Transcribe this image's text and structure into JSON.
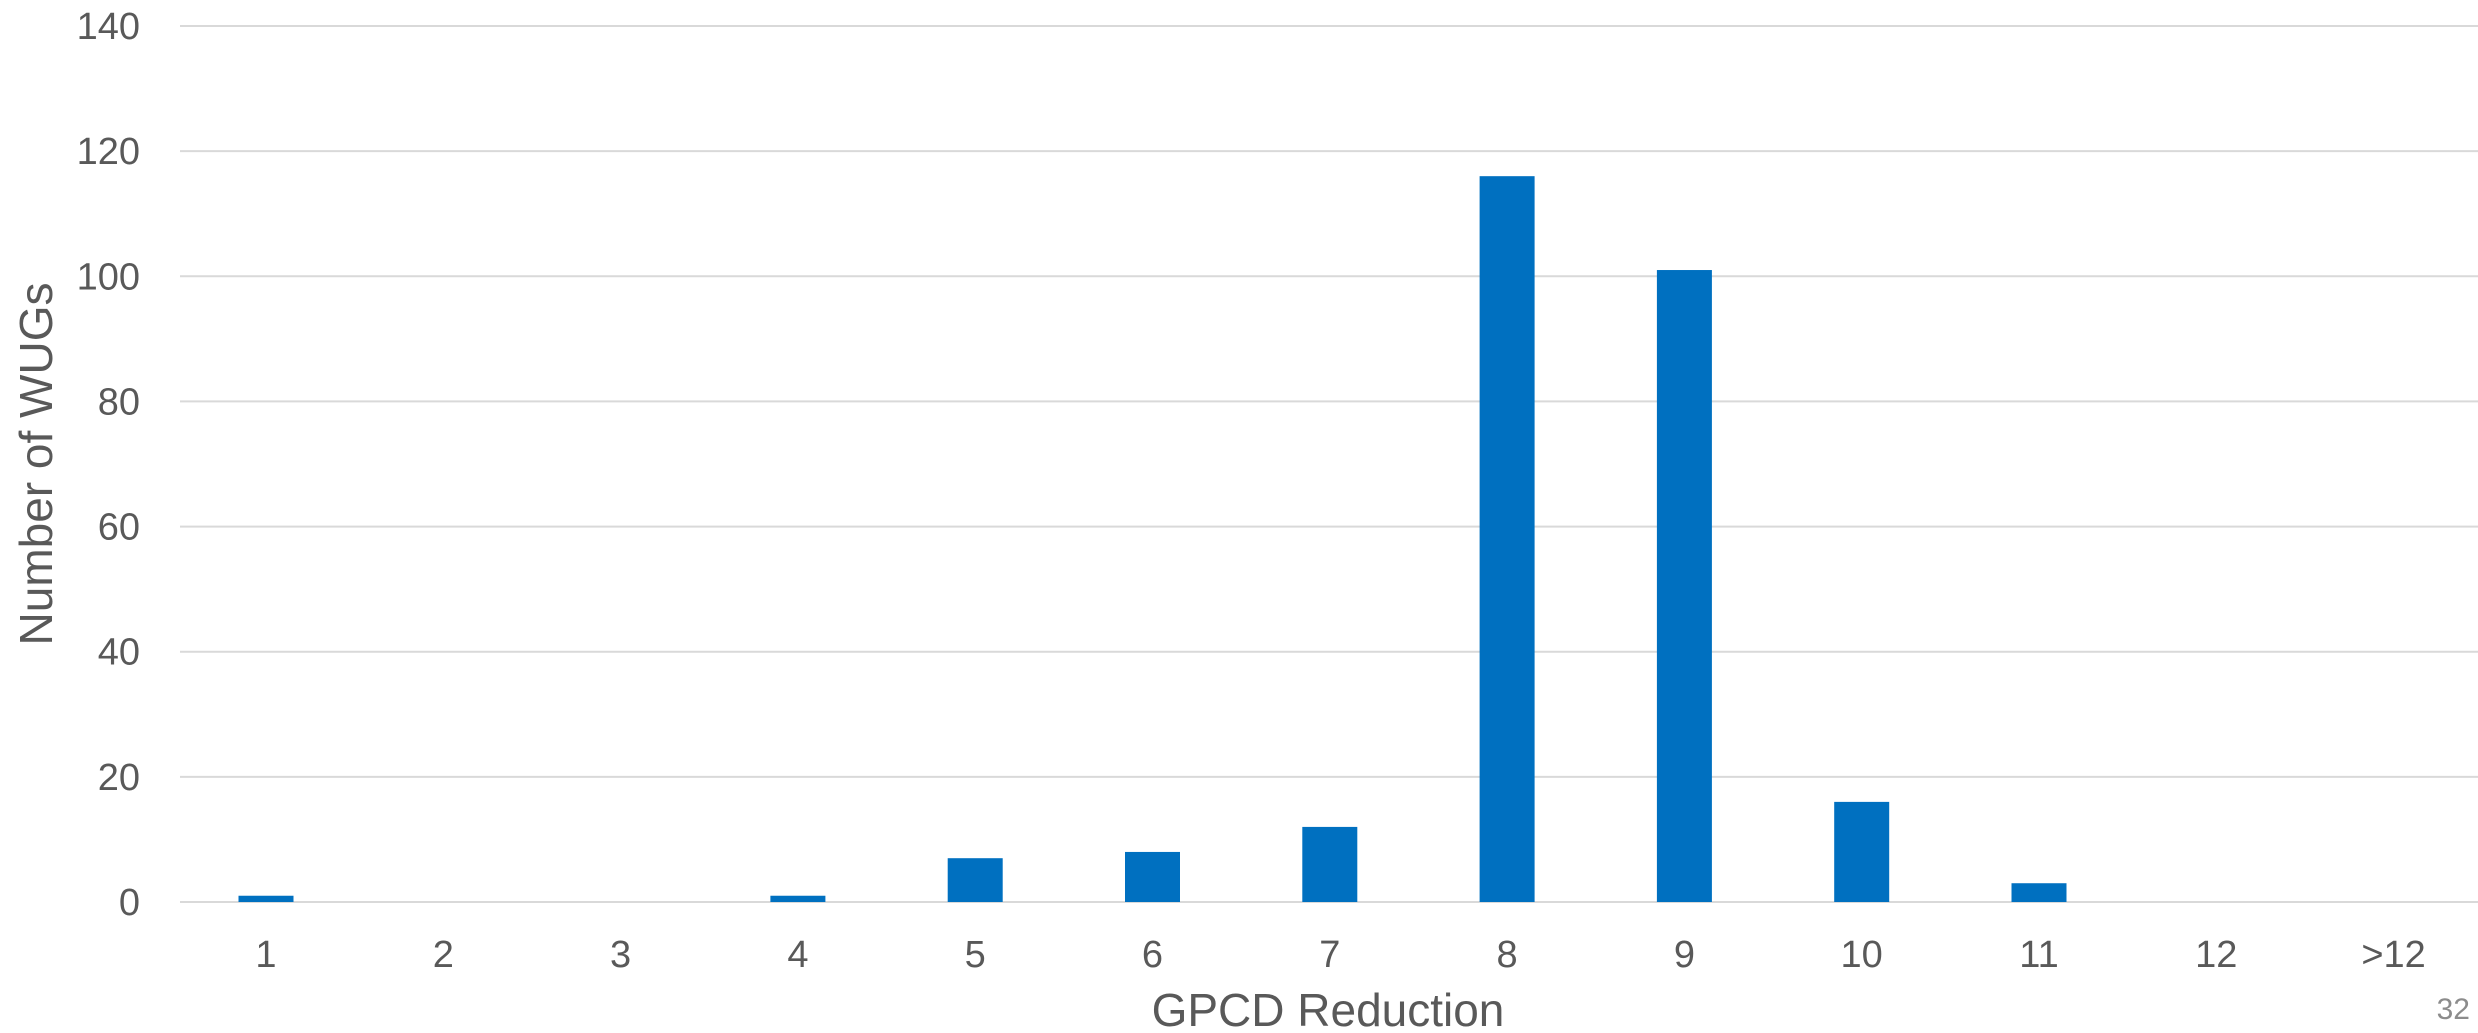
{
  "chart_data": {
    "type": "bar",
    "title": "",
    "xlabel": "GPCD Reduction",
    "ylabel": "Number of WUGs",
    "categories": [
      "1",
      "2",
      "3",
      "4",
      "5",
      "6",
      "7",
      "8",
      "9",
      "10",
      "11",
      "12",
      ">12"
    ],
    "series": [
      {
        "values": [
          1,
          0,
          0,
          1,
          7,
          8,
          12,
          116,
          101,
          16,
          3,
          0,
          0
        ]
      }
    ],
    "ylim": [
      0,
      140
    ],
    "yticks": [
      0,
      20,
      40,
      60,
      80,
      100,
      120,
      140
    ],
    "grid": true,
    "legend": "none"
  },
  "colors": {
    "bar": "#0070C0",
    "grid": "#d9d9d9",
    "text": "#595959"
  },
  "page_number": "32"
}
